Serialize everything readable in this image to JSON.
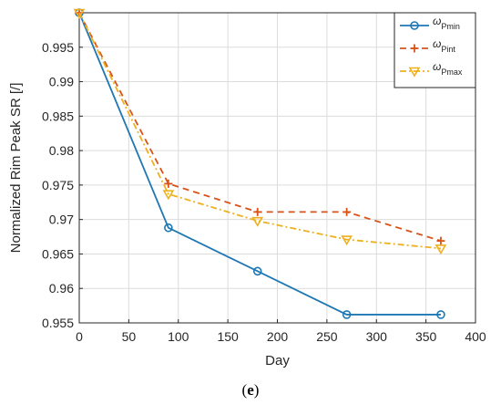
{
  "chart_data": {
    "type": "line",
    "xlabel": "Day",
    "ylabel": "Normalized Rim Peak SR [/]",
    "xlim": [
      0,
      400
    ],
    "ylim": [
      0.955,
      1.0
    ],
    "xticks": [
      0,
      50,
      100,
      150,
      200,
      250,
      300,
      350,
      400
    ],
    "xtick_labels": [
      "0",
      "50",
      "100",
      "150",
      "200",
      "250",
      "300",
      "350",
      "400"
    ],
    "yticks": [
      0.955,
      0.96,
      0.965,
      0.97,
      0.975,
      0.98,
      0.985,
      0.99,
      0.995
    ],
    "ytick_labels": [
      "0.955",
      "0.96",
      "0.965",
      "0.97",
      "0.975",
      "0.98",
      "0.985",
      "0.99",
      "0.995"
    ],
    "grid": true,
    "legend_position": "top-right",
    "series": [
      {
        "name": "ω",
        "name_sub": "Pmin",
        "color": "#1f77b4",
        "line_style": "solid",
        "marker": "circle",
        "x": [
          0,
          90,
          180,
          270,
          365
        ],
        "y": [
          1.0,
          0.9688,
          0.9625,
          0.9562,
          0.9562
        ]
      },
      {
        "name": "ω",
        "name_sub": "Pint",
        "color": "#d95319",
        "line_style": "dashed",
        "marker": "plus",
        "x": [
          0,
          90,
          180,
          270,
          365
        ],
        "y": [
          1.0,
          0.9752,
          0.9711,
          0.9711,
          0.9669
        ]
      },
      {
        "name": "ω",
        "name_sub": "Pmax",
        "color": "#edb120",
        "line_style": "dashdot",
        "marker": "triangle-down",
        "x": [
          0,
          90,
          180,
          270,
          365
        ],
        "y": [
          1.0,
          0.9737,
          0.9698,
          0.9671,
          0.9658
        ]
      }
    ]
  },
  "caption": {
    "prefix": "(",
    "letter": "e",
    "suffix": ")"
  }
}
